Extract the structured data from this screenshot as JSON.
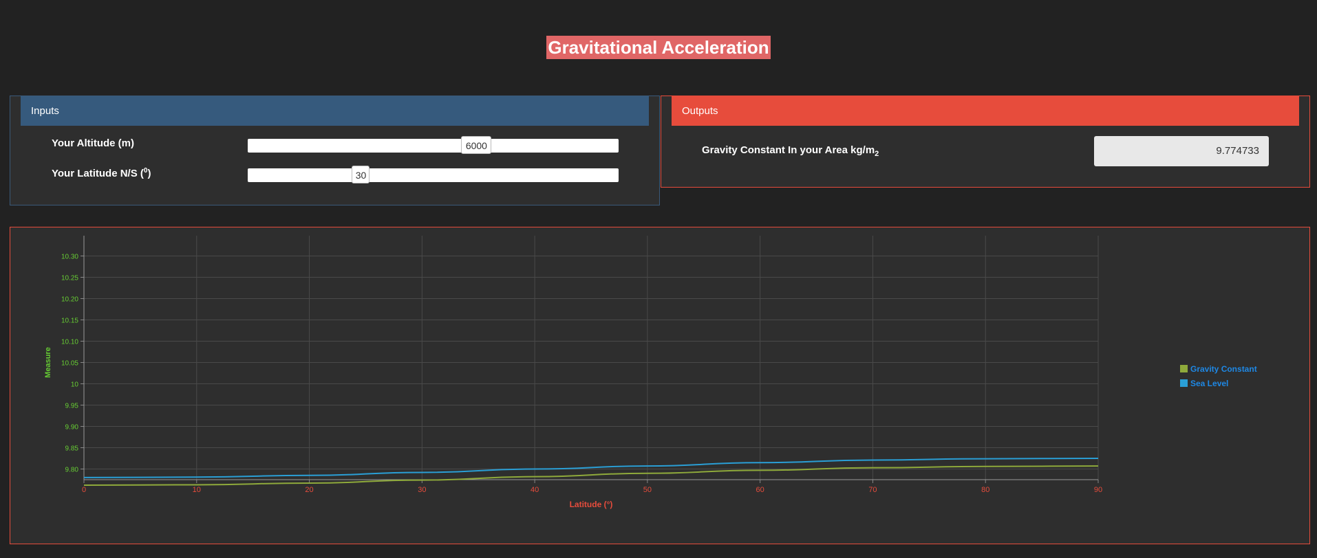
{
  "page": {
    "title": "Gravitational Acceleration"
  },
  "inputs": {
    "header": "Inputs",
    "altitude": {
      "label": "Your Altitude (m)",
      "value": "6000",
      "min": 0,
      "max": 10000,
      "fraction": 0.6
    },
    "latitude": {
      "label_main": "Your Latitude N/S (",
      "label_sup": "0",
      "label_end": ")",
      "value": "30",
      "min": 0,
      "max": 90,
      "fraction": 0.333
    }
  },
  "outputs": {
    "header": "Outputs",
    "gravity_label_main": "Gravity Constant In your Area kg/m",
    "gravity_label_sub": "2",
    "gravity_value": "9.774733"
  },
  "colors": {
    "gravity": "#8faa3b",
    "sea_level": "#2a9fd6",
    "axis_label": "#e74c3c",
    "ytick": "#66cc33"
  },
  "chart_data": {
    "type": "line",
    "xlabel": "Latitude (°)",
    "ylabel": "Measure",
    "xlim": [
      0,
      90
    ],
    "ylim": [
      9.775,
      10.325
    ],
    "xticks": [
      "0",
      "10",
      "20",
      "30",
      "40",
      "50",
      "60",
      "70",
      "80",
      "90"
    ],
    "yticks": [
      "9.80",
      "9.85",
      "9.90",
      "9.95",
      "10",
      "10.05",
      "10.10",
      "10.15",
      "10.20",
      "10.25",
      "10.30"
    ],
    "grid": true,
    "legend_position": "right",
    "x": [
      0,
      10,
      20,
      30,
      40,
      50,
      60,
      70,
      80,
      90
    ],
    "series": [
      {
        "name": "Gravity Constant",
        "values": [
          9.762,
          9.763,
          9.767,
          9.774,
          9.782,
          9.79,
          9.797,
          9.803,
          9.806,
          9.807
        ]
      },
      {
        "name": "Sea Level",
        "values": [
          9.78,
          9.781,
          9.785,
          9.792,
          9.8,
          9.807,
          9.815,
          9.821,
          9.824,
          9.825
        ]
      }
    ]
  }
}
